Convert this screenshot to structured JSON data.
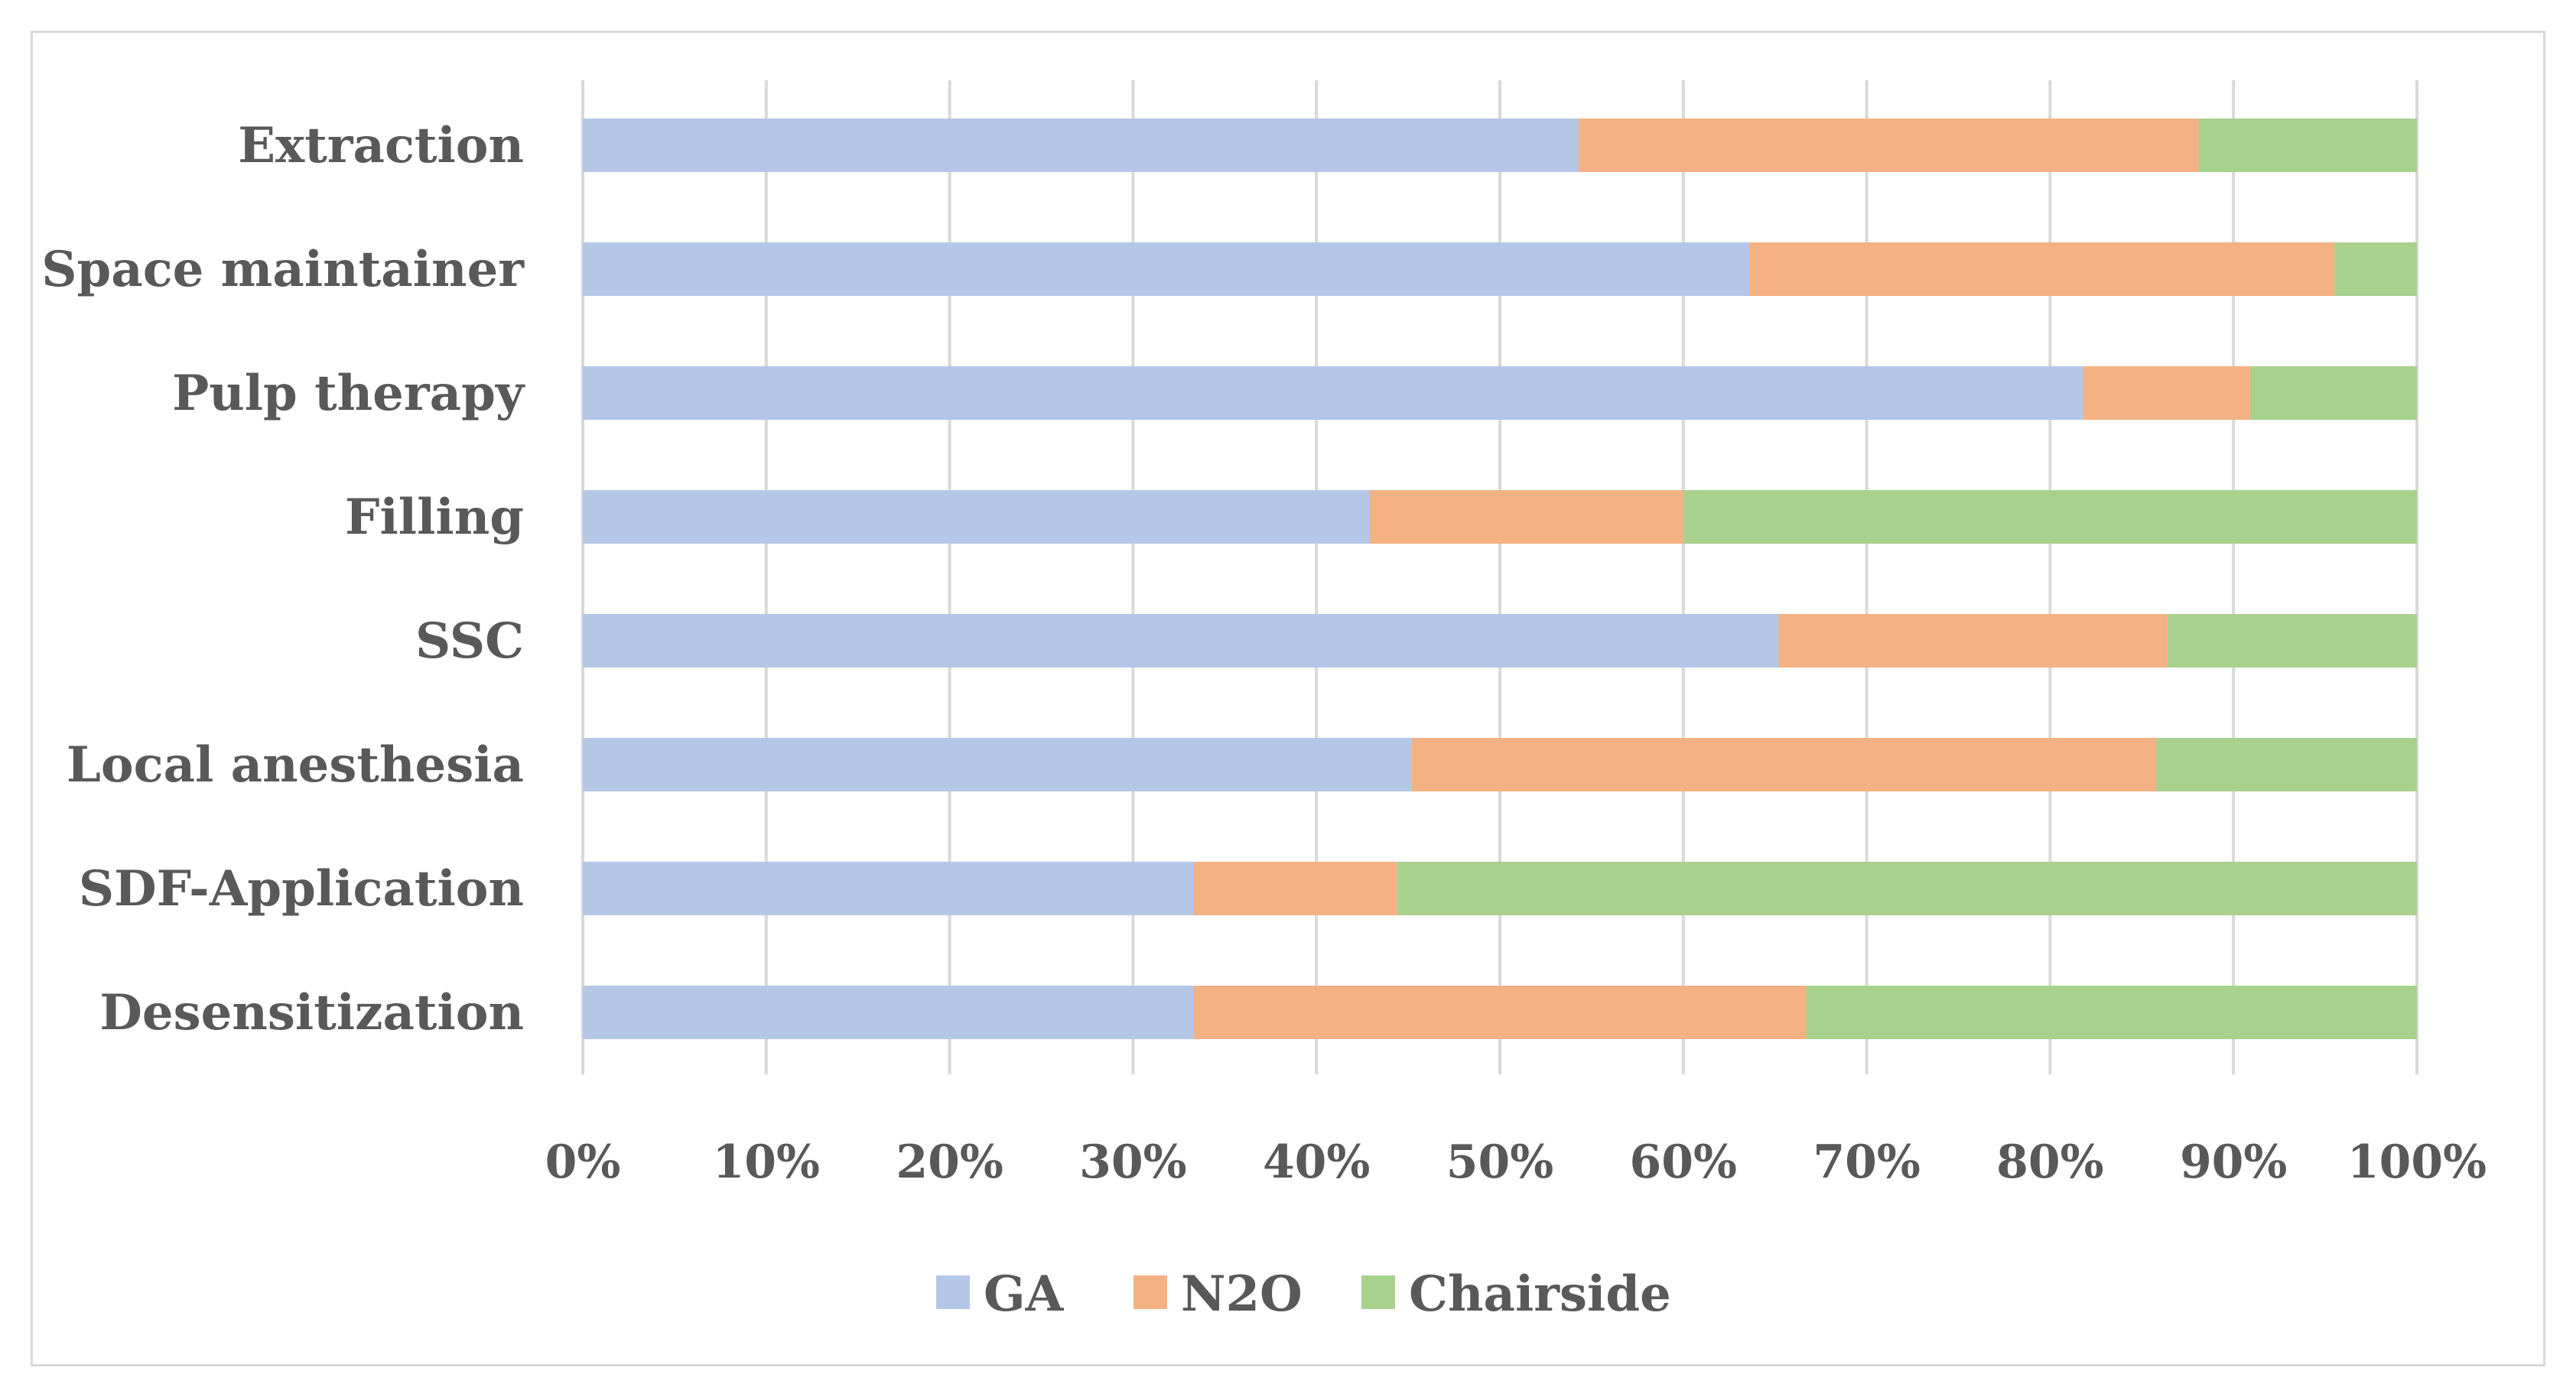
{
  "chart_data": {
    "type": "bar",
    "orientation": "horizontal",
    "stacked": "percent",
    "categories": [
      "Extraction",
      "Space maintainer",
      "Pulp therapy",
      "Filling",
      "SSC",
      "Local anesthesia",
      "SDF-Application",
      "Desensitization"
    ],
    "series": [
      {
        "name": "GA",
        "color": "#b4c7e7",
        "values": [
          54.3,
          63.6,
          81.8,
          42.9,
          65.2,
          45.2,
          33.3,
          33.3
        ]
      },
      {
        "name": "N2O",
        "color": "#f4b183",
        "values": [
          33.8,
          31.9,
          9.1,
          17.1,
          21.2,
          40.6,
          11.1,
          33.4
        ]
      },
      {
        "name": "Chairside",
        "color": "#a9d18e",
        "values": [
          11.9,
          4.5,
          9.1,
          40.0,
          13.6,
          14.2,
          55.6,
          33.3
        ]
      }
    ],
    "x_ticks": [
      "0%",
      "10%",
      "20%",
      "30%",
      "40%",
      "50%",
      "60%",
      "70%",
      "80%",
      "90%",
      "100%"
    ],
    "xlim": [
      0,
      100
    ],
    "x_unit": "percent",
    "grid": "vertical",
    "legend_position": "bottom",
    "title": "",
    "xlabel": "",
    "ylabel": ""
  }
}
